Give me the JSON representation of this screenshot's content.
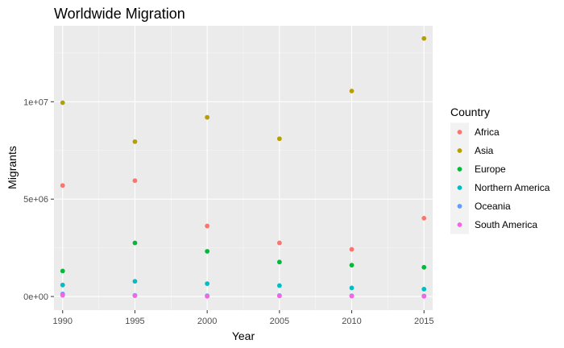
{
  "chart_data": {
    "type": "scatter",
    "title": "Worldwide Migration",
    "xlabel": "Year",
    "ylabel": "Migrants",
    "x": [
      1990,
      1995,
      2000,
      2005,
      2010,
      2015
    ],
    "xlim": [
      1989.4,
      2015.6
    ],
    "ylim": [
      -700000,
      13900000
    ],
    "x_ticks": [
      1990,
      1995,
      2000,
      2005,
      2010,
      2015
    ],
    "x_tick_labels": [
      "1990",
      "1995",
      "2000",
      "2005",
      "2010",
      "2015"
    ],
    "y_ticks": [
      0,
      5000000,
      10000000
    ],
    "y_tick_labels": [
      "0e+00",
      "5e+06",
      "1e+07"
    ],
    "grid": true,
    "legend_position": "right",
    "legend_title": "Country",
    "series": [
      {
        "name": "Africa",
        "color": "#F8766D",
        "values": [
          5700000,
          5950000,
          3620000,
          2750000,
          2420000,
          4020000
        ]
      },
      {
        "name": "Asia",
        "color": "#B79F00",
        "values": [
          9950000,
          7950000,
          9200000,
          8100000,
          10550000,
          13250000
        ]
      },
      {
        "name": "Europe",
        "color": "#00BA38",
        "values": [
          1310000,
          2750000,
          2320000,
          1770000,
          1610000,
          1500000
        ]
      },
      {
        "name": "Northern America",
        "color": "#00BFC4",
        "values": [
          590000,
          780000,
          660000,
          560000,
          440000,
          380000
        ]
      },
      {
        "name": "Oceania",
        "color": "#619CFF",
        "values": [
          130000,
          60000,
          40000,
          50000,
          40000,
          30000
        ]
      },
      {
        "name": "South America",
        "color": "#F564E3",
        "values": [
          60000,
          40000,
          10000,
          30000,
          20000,
          10000
        ]
      }
    ]
  }
}
